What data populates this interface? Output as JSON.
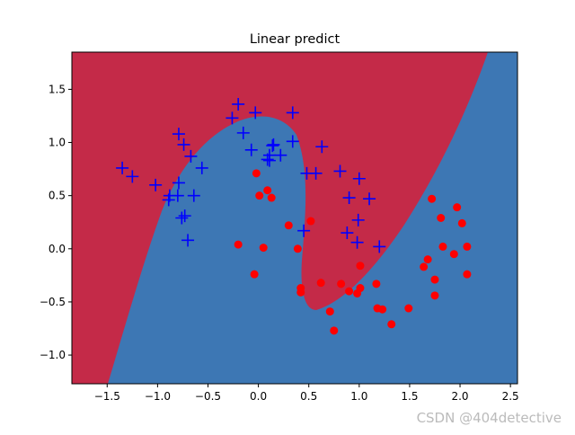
{
  "chart_data": {
    "type": "scatter",
    "title": "Linear predict",
    "watermark": "CSDN @404detective",
    "xlim": [
      -1.85,
      2.57
    ],
    "ylim": [
      -1.27,
      1.85
    ],
    "xticks": [
      {
        "value": -1.5,
        "label": "−1.5"
      },
      {
        "value": -1.0,
        "label": "−1.0"
      },
      {
        "value": -0.5,
        "label": "−0.5"
      },
      {
        "value": 0,
        "label": "0.0"
      },
      0.5,
      {
        "value": 1,
        "label": "1.0"
      },
      1.5,
      {
        "value": 2,
        "label": "2.0"
      },
      2.5
    ],
    "yticks": [
      {
        "value": -1.0,
        "label": "−1.0"
      },
      {
        "value": -0.5,
        "label": "−0.5"
      },
      {
        "value": 0,
        "label": "0.0"
      },
      0.5,
      {
        "value": 1,
        "label": "1.0"
      },
      1.5
    ],
    "series": [
      {
        "color": "#0000ff",
        "marker": "+",
        "x": [
          -1.35,
          -1.25,
          -1.02,
          -0.88,
          -0.89,
          -0.8,
          -0.79,
          -0.79,
          -0.74,
          -0.67,
          -0.56,
          -0.64,
          -0.76,
          -0.73,
          -0.7,
          -0.26,
          -0.2,
          -0.15,
          -0.07,
          -0.03,
          0.09,
          0.11,
          0.14,
          0.15,
          0.22,
          0.11,
          0.34,
          0.34,
          0.48,
          0.57,
          0.63,
          0.81,
          0.9,
          0.88,
          1.0,
          0.99,
          0.98,
          1.1,
          1.2,
          0.45
        ],
        "y": [
          0.76,
          0.68,
          0.6,
          0.5,
          0.46,
          0.5,
          0.62,
          1.08,
          0.98,
          0.87,
          0.76,
          0.5,
          0.29,
          0.31,
          0.08,
          1.23,
          1.36,
          1.09,
          0.93,
          1.28,
          0.84,
          0.88,
          0.97,
          0.98,
          0.88,
          0.83,
          1.28,
          1.01,
          0.71,
          0.71,
          0.96,
          0.73,
          0.48,
          0.15,
          0.66,
          0.27,
          0.06,
          0.47,
          0.02,
          0.17
        ]
      },
      {
        "color": "#ff0000",
        "marker": "o",
        "x": [
          -0.02,
          0.01,
          0.09,
          0.13,
          -0.2,
          0.05,
          -0.04,
          0.3,
          0.52,
          0.39,
          0.42,
          0.42,
          0.62,
          0.71,
          0.75,
          0.82,
          0.9,
          0.98,
          1.01,
          1.01,
          1.17,
          1.18,
          1.23,
          1.32,
          1.49,
          1.64,
          1.68,
          1.72,
          1.75,
          1.75,
          1.81,
          1.83,
          1.97,
          2.02,
          2.07,
          1.94,
          2.07
        ],
        "y": [
          0.71,
          0.5,
          0.55,
          0.48,
          0.04,
          0.01,
          -0.24,
          0.22,
          0.26,
          0,
          -0.37,
          -0.41,
          -0.32,
          -0.59,
          -0.77,
          -0.33,
          -0.4,
          -0.42,
          -0.16,
          -0.37,
          -0.33,
          -0.56,
          -0.57,
          -0.71,
          -0.56,
          -0.17,
          -0.1,
          0.47,
          -0.29,
          -0.44,
          0.29,
          0.02,
          0.39,
          0.24,
          0.02,
          -0.05,
          -0.24
        ]
      }
    ]
  }
}
